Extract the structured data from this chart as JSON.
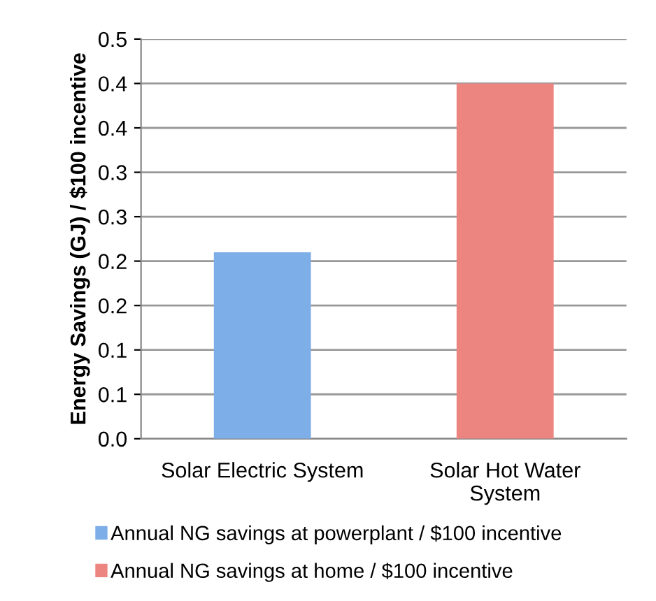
{
  "chart_data": {
    "type": "bar",
    "ylabel": "Energy Savings (GJ) / $100 incentive",
    "categories": [
      "Solar Electric System",
      "Solar Hot Water\nSystem"
    ],
    "series": [
      {
        "name": "Annual NG savings at powerplant / $100 incentive",
        "color": "#7eaee8",
        "values": [
          0.21,
          null
        ]
      },
      {
        "name": "Annual NG savings at home / $100 incentive",
        "color": "#ec8580",
        "values": [
          null,
          0.4
        ]
      }
    ],
    "ylim": [
      0,
      0.45
    ],
    "yticks": [
      {
        "value": 0,
        "label": "0.0"
      },
      {
        "value": 0.05,
        "label": "0.1"
      },
      {
        "value": 0.1,
        "label": "0.1"
      },
      {
        "value": 0.15,
        "label": "0.2"
      },
      {
        "value": 0.2,
        "label": "0.2"
      },
      {
        "value": 0.25,
        "label": "0.3"
      },
      {
        "value": 0.3,
        "label": "0.3"
      },
      {
        "value": 0.35,
        "label": "0.4"
      },
      {
        "value": 0.4,
        "label": "0.4"
      },
      {
        "value": 0.45,
        "label": "0.5"
      }
    ],
    "grid": "y",
    "legend": "bottom"
  }
}
